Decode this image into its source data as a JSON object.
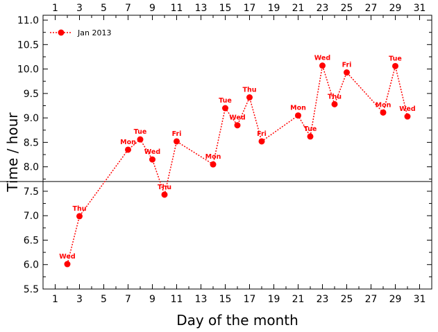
{
  "chart_data": {
    "type": "line",
    "xlabel": "Day of the month",
    "ylabel": "Time / hour",
    "xlim": [
      0,
      32
    ],
    "ylim": [
      5.5,
      11.1
    ],
    "x_ticks": [
      1,
      3,
      5,
      7,
      9,
      11,
      13,
      15,
      17,
      19,
      21,
      23,
      25,
      27,
      29,
      31
    ],
    "x_tick_labels": [
      "1",
      "3",
      "5",
      "7",
      "9",
      "11",
      "13",
      "15",
      "17",
      "19",
      "21",
      "23",
      "25",
      "27",
      "29",
      "31"
    ],
    "y_ticks": [
      5.5,
      6.0,
      6.5,
      7.0,
      7.5,
      8.0,
      8.5,
      9.0,
      9.5,
      10.0,
      10.5,
      11.0
    ],
    "y_tick_labels": [
      "5.5",
      "6.0",
      "6.5",
      "7.0",
      "7.5",
      "8.0",
      "8.5",
      "9.0",
      "9.5",
      "10.0",
      "10.5",
      "11.0"
    ],
    "reference_line": {
      "y": 7.7,
      "color": "#000000"
    },
    "legend": {
      "position": "top-left"
    },
    "series": [
      {
        "name": "Jan 2013",
        "color": "#ff0000",
        "points": [
          {
            "x": 2,
            "y": 6.01,
            "label": "Wed"
          },
          {
            "x": 3,
            "y": 6.99,
            "label": "Thu"
          },
          {
            "x": 7,
            "y": 8.35,
            "label": "Mon"
          },
          {
            "x": 8,
            "y": 8.56,
            "label": "Tue"
          },
          {
            "x": 9,
            "y": 8.15,
            "label": "Wed"
          },
          {
            "x": 10,
            "y": 7.43,
            "label": "Thu"
          },
          {
            "x": 11,
            "y": 8.52,
            "label": "Fri"
          },
          {
            "x": 14,
            "y": 8.05,
            "label": "Mon"
          },
          {
            "x": 15,
            "y": 9.2,
            "label": "Tue"
          },
          {
            "x": 16,
            "y": 8.85,
            "label": "Wed"
          },
          {
            "x": 17,
            "y": 9.42,
            "label": "Thu"
          },
          {
            "x": 18,
            "y": 8.52,
            "label": "Fri"
          },
          {
            "x": 21,
            "y": 9.05,
            "label": "Mon"
          },
          {
            "x": 22,
            "y": 8.62,
            "label": "Tue"
          },
          {
            "x": 23,
            "y": 10.07,
            "label": "Wed"
          },
          {
            "x": 24,
            "y": 9.28,
            "label": "Thu"
          },
          {
            "x": 25,
            "y": 9.93,
            "label": "Fri"
          },
          {
            "x": 28,
            "y": 9.11,
            "label": "Mon"
          },
          {
            "x": 29,
            "y": 10.06,
            "label": "Tue"
          },
          {
            "x": 30,
            "y": 9.03,
            "label": "Wed"
          }
        ]
      }
    ]
  }
}
